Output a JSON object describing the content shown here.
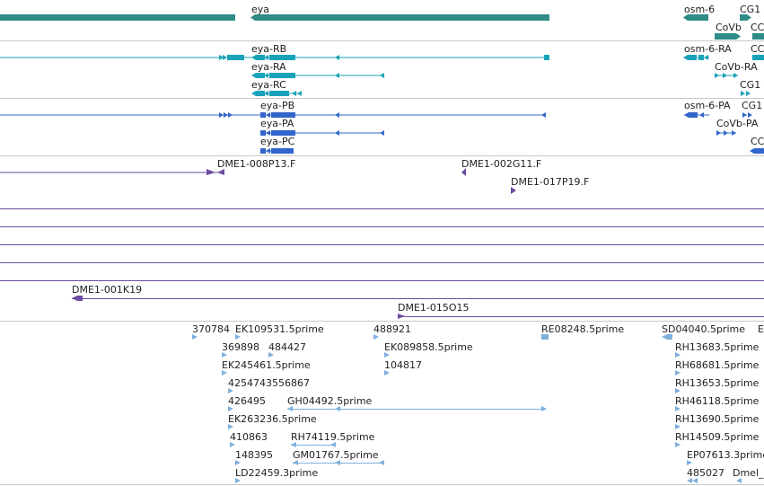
{
  "colors": {
    "gene": "#2e8b87",
    "transcript": "#1aa3b8",
    "protein": "#3366cc",
    "clone": "#6a4ca0",
    "est": "#7fb0dc",
    "divider": "#c8c8c8",
    "text": "#222222"
  },
  "tracks": {
    "genes": {
      "labels": [
        {
          "id": "eya",
          "text": "eya"
        },
        {
          "id": "osm6",
          "text": "osm-6"
        },
        {
          "id": "cg1a",
          "text": "CG1"
        },
        {
          "id": "covb",
          "text": "CoVb"
        },
        {
          "id": "cc1",
          "text": "CC"
        }
      ]
    },
    "transcripts": {
      "labels": [
        {
          "id": "eya-rb",
          "text": "eya-RB"
        },
        {
          "id": "eya-ra",
          "text": "eya-RA"
        },
        {
          "id": "eya-rc",
          "text": "eya-RC"
        },
        {
          "id": "osm6-ra",
          "text": "osm-6-RA"
        },
        {
          "id": "cc2",
          "text": "CC"
        },
        {
          "id": "covb-ra",
          "text": "CoVb-RA"
        },
        {
          "id": "cg1b",
          "text": "CG1"
        }
      ]
    },
    "proteins": {
      "labels": [
        {
          "id": "eya-pb",
          "text": "eya-PB"
        },
        {
          "id": "eya-pa",
          "text": "eya-PA"
        },
        {
          "id": "eya-pc",
          "text": "eya-PC"
        },
        {
          "id": "osm6-pa",
          "text": "osm-6-PA"
        },
        {
          "id": "cg1c",
          "text": "CG1"
        },
        {
          "id": "covb-pa",
          "text": "CoVb-PA"
        },
        {
          "id": "cc3",
          "text": "CC"
        }
      ]
    },
    "clones": {
      "labels": [
        {
          "id": "c008",
          "text": "DME1-008P13.F"
        },
        {
          "id": "c002",
          "text": "DME1-002G11.F"
        },
        {
          "id": "c017",
          "text": "DME1-017P19.F"
        },
        {
          "id": "c001",
          "text": "DME1-001K19"
        },
        {
          "id": "c015",
          "text": "DME1-015O15"
        }
      ]
    },
    "ests": {
      "labels": [
        {
          "id": "e1",
          "text": "370784"
        },
        {
          "id": "e2",
          "text": "EK109531.5prime"
        },
        {
          "id": "e3",
          "text": "488921"
        },
        {
          "id": "e4",
          "text": "RE08248.5prime"
        },
        {
          "id": "e5",
          "text": "SD04040.5prime"
        },
        {
          "id": "e6",
          "text": "E"
        },
        {
          "id": "e7",
          "text": "369898"
        },
        {
          "id": "e8",
          "text": "484427"
        },
        {
          "id": "e9",
          "text": "EK089858.5prime"
        },
        {
          "id": "e10",
          "text": "RH13683.5prime"
        },
        {
          "id": "e11",
          "text": "EK245461.5prime"
        },
        {
          "id": "e12",
          "text": "104817"
        },
        {
          "id": "e13",
          "text": "RH68681.5prime"
        },
        {
          "id": "e14",
          "text": "425474"
        },
        {
          "id": "e15",
          "text": "3556867"
        },
        {
          "id": "e16",
          "text": "RH13653.5prime"
        },
        {
          "id": "e17",
          "text": "426495"
        },
        {
          "id": "e18",
          "text": "GH04492.5prime"
        },
        {
          "id": "e19",
          "text": "RH46118.5prime"
        },
        {
          "id": "e20",
          "text": "EK263236.5prime"
        },
        {
          "id": "e21",
          "text": "RH13690.5prime"
        },
        {
          "id": "e22",
          "text": "410863"
        },
        {
          "id": "e23",
          "text": "RH74119.5prime"
        },
        {
          "id": "e24",
          "text": "RH14509.5prime"
        },
        {
          "id": "e25",
          "text": "148395"
        },
        {
          "id": "e26",
          "text": "GM01767.5prime"
        },
        {
          "id": "e27",
          "text": "EP07613.3prime"
        },
        {
          "id": "e28",
          "text": "LD22459.3prime"
        },
        {
          "id": "e29",
          "text": "485027"
        },
        {
          "id": "e30",
          "text": "Dmel_"
        }
      ]
    }
  }
}
